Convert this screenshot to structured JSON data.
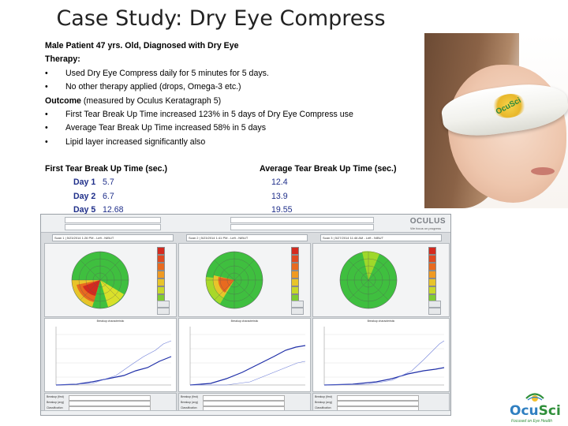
{
  "slide": {
    "title": "Case Study: Dry Eye Compress",
    "patient": "Male Patient 47 yrs. Old,  Diagnosed with Dry Eye",
    "therapy_heading": "Therapy:",
    "therapy_items": [
      "Used Dry Eye Compress  daily for 5 minutes for 5 days.",
      "No other therapy applied (drops, Omega-3 etc.)"
    ],
    "outcome_heading": "Outcome",
    "outcome_note": "(measured by Oculus Keratagraph 5)",
    "outcome_items": [
      "First Tear Break Up Time increased 123% in 5 days of Dry Eye Compress use",
      "Average Tear Break Up Time increased 58% in 5 days",
      "Lipid layer increased significantly also"
    ],
    "bullet_symbol": "•",
    "table": {
      "first_header": "First Tear Break Up Time (sec.)",
      "avg_header": "Average Tear Break Up Time (sec.)",
      "rows": [
        {
          "day": "Day 1",
          "first": "5.7",
          "avg": "12.4"
        },
        {
          "day": "Day 2",
          "first": "6.7",
          "avg": "13.9"
        },
        {
          "day": "Day 5",
          "first": "12.68",
          "avg": "19.55"
        }
      ]
    }
  },
  "photo": {
    "mask_text": "OcuSci"
  },
  "screenshot": {
    "brand": "OCULUS",
    "brand_sub": "We focus on progress",
    "panels": [
      {
        "select_text": "Scan 1  |  5/23/2014 1:26 PM - Left - NIBUT",
        "graph_title": "Breakup characteristic"
      },
      {
        "select_text": "Scan 2  |  5/23/2014 1:41 PM - Left - NIBUT",
        "graph_title": "Breakup characteristic"
      },
      {
        "select_text": "Scan 3  |  5/27/2014 11:46 AM - Left - NIBUT",
        "graph_title": "Breakup characteristic"
      }
    ],
    "info_labels": [
      "Breakup (first)",
      "Breakup (avg)",
      "Classification"
    ]
  },
  "logo": {
    "name_a": "Ocu",
    "name_b": "Sci",
    "tagline": "Focused on Eye Health",
    "colors": {
      "blue": "#2f7fc1",
      "green": "#2f8f3a",
      "yellow": "#f2c12e"
    }
  }
}
